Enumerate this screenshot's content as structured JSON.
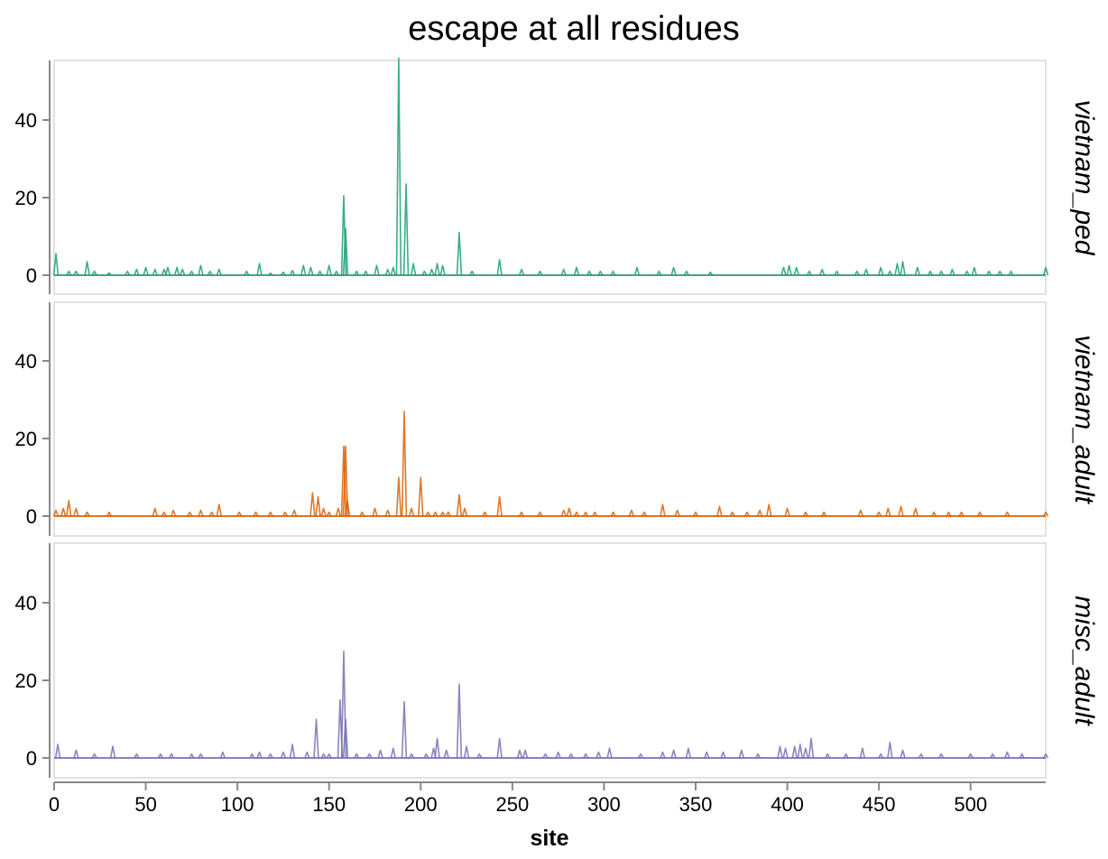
{
  "chart_data": {
    "type": "line",
    "title": "escape at all residues",
    "xlabel": "site",
    "ylabel": "",
    "xlim": [
      0,
      541
    ],
    "ylim": [
      0,
      55
    ],
    "x_ticks": [
      0,
      50,
      100,
      150,
      200,
      250,
      300,
      350,
      400,
      450,
      500
    ],
    "y_ticks": [
      0,
      20,
      40
    ],
    "grid": false,
    "facets": [
      {
        "name": "vietnam_ped",
        "color": "#1b9e77",
        "peaks": [
          [
            1,
            5.5
          ],
          [
            8,
            1
          ],
          [
            12,
            1
          ],
          [
            18,
            3.5
          ],
          [
            22,
            1
          ],
          [
            30,
            0.6
          ],
          [
            40,
            1
          ],
          [
            45,
            1.5
          ],
          [
            50,
            2
          ],
          [
            55,
            1.5
          ],
          [
            60,
            1.5
          ],
          [
            62,
            2
          ],
          [
            67,
            2
          ],
          [
            70,
            1.5
          ],
          [
            75,
            1
          ],
          [
            80,
            2.5
          ],
          [
            85,
            1
          ],
          [
            90,
            1.5
          ],
          [
            105,
            1
          ],
          [
            112,
            3
          ],
          [
            118,
            0.5
          ],
          [
            125,
            0.8
          ],
          [
            130,
            1.2
          ],
          [
            136,
            2.5
          ],
          [
            140,
            2
          ],
          [
            145,
            1
          ],
          [
            150,
            2.5
          ],
          [
            154,
            1
          ],
          [
            158,
            20.5
          ],
          [
            159,
            12
          ],
          [
            165,
            1
          ],
          [
            170,
            1
          ],
          [
            176,
            2.5
          ],
          [
            182,
            1.5
          ],
          [
            185,
            2
          ],
          [
            188,
            56
          ],
          [
            192,
            23.5
          ],
          [
            196,
            3
          ],
          [
            202,
            1
          ],
          [
            206,
            1.5
          ],
          [
            209,
            3
          ],
          [
            212,
            2.5
          ],
          [
            221,
            11
          ],
          [
            228,
            1
          ],
          [
            243,
            4
          ],
          [
            255,
            1.5
          ],
          [
            265,
            1
          ],
          [
            278,
            1.5
          ],
          [
            285,
            2
          ],
          [
            292,
            1
          ],
          [
            298,
            1
          ],
          [
            305,
            1
          ],
          [
            318,
            2
          ],
          [
            330,
            1
          ],
          [
            338,
            2
          ],
          [
            345,
            1
          ],
          [
            358,
            0.8
          ],
          [
            398,
            2
          ],
          [
            401,
            2.5
          ],
          [
            405,
            2
          ],
          [
            412,
            1
          ],
          [
            419,
            1.5
          ],
          [
            427,
            1
          ],
          [
            438,
            1
          ],
          [
            443,
            1.5
          ],
          [
            451,
            2
          ],
          [
            456,
            1
          ],
          [
            460,
            3
          ],
          [
            463,
            3.5
          ],
          [
            471,
            2
          ],
          [
            478,
            1
          ],
          [
            484,
            1
          ],
          [
            490,
            1.5
          ],
          [
            498,
            1
          ],
          [
            502,
            2
          ],
          [
            510,
            1
          ],
          [
            516,
            1
          ],
          [
            522,
            1
          ],
          [
            541,
            2
          ]
        ]
      },
      {
        "name": "vietnam_adult",
        "color": "#d95f02",
        "peaks": [
          [
            1,
            1.5
          ],
          [
            5,
            2
          ],
          [
            8,
            4
          ],
          [
            12,
            2
          ],
          [
            18,
            1
          ],
          [
            30,
            1
          ],
          [
            55,
            2
          ],
          [
            60,
            1
          ],
          [
            65,
            1.5
          ],
          [
            74,
            1
          ],
          [
            80,
            1.5
          ],
          [
            86,
            1
          ],
          [
            90,
            3
          ],
          [
            101,
            1
          ],
          [
            110,
            1
          ],
          [
            118,
            1
          ],
          [
            126,
            1
          ],
          [
            131,
            1.5
          ],
          [
            141,
            6
          ],
          [
            144,
            5
          ],
          [
            147,
            2
          ],
          [
            150,
            1
          ],
          [
            155,
            2
          ],
          [
            158,
            18
          ],
          [
            159,
            18
          ],
          [
            160,
            4
          ],
          [
            168,
            1
          ],
          [
            175,
            2
          ],
          [
            182,
            1.5
          ],
          [
            188,
            10
          ],
          [
            191,
            27
          ],
          [
            195,
            2
          ],
          [
            200,
            10
          ],
          [
            204,
            1
          ],
          [
            208,
            1
          ],
          [
            212,
            1
          ],
          [
            215,
            1
          ],
          [
            221,
            5.5
          ],
          [
            224,
            2
          ],
          [
            235,
            1
          ],
          [
            243,
            5
          ],
          [
            255,
            1
          ],
          [
            265,
            1
          ],
          [
            278,
            1.5
          ],
          [
            281,
            2
          ],
          [
            285,
            1
          ],
          [
            290,
            1
          ],
          [
            295,
            1
          ],
          [
            305,
            1
          ],
          [
            315,
            1.5
          ],
          [
            322,
            1
          ],
          [
            332,
            3
          ],
          [
            340,
            1.5
          ],
          [
            350,
            1
          ],
          [
            363,
            2.5
          ],
          [
            370,
            1
          ],
          [
            378,
            1
          ],
          [
            385,
            1.5
          ],
          [
            390,
            3
          ],
          [
            400,
            2
          ],
          [
            410,
            1
          ],
          [
            420,
            1
          ],
          [
            440,
            1.5
          ],
          [
            450,
            1
          ],
          [
            455,
            2
          ],
          [
            462,
            2.5
          ],
          [
            470,
            2
          ],
          [
            480,
            1
          ],
          [
            488,
            1
          ],
          [
            495,
            1
          ],
          [
            505,
            1
          ],
          [
            520,
            1
          ],
          [
            541,
            1
          ]
        ]
      },
      {
        "name": "misc_adult",
        "color": "#7570b3",
        "peaks": [
          [
            2,
            3.5
          ],
          [
            12,
            2
          ],
          [
            22,
            1
          ],
          [
            32,
            3
          ],
          [
            45,
            1
          ],
          [
            58,
            1
          ],
          [
            64,
            1
          ],
          [
            75,
            1
          ],
          [
            80,
            1
          ],
          [
            92,
            1.5
          ],
          [
            108,
            1
          ],
          [
            112,
            1.5
          ],
          [
            118,
            1
          ],
          [
            125,
            1.5
          ],
          [
            130,
            3.5
          ],
          [
            138,
            1.5
          ],
          [
            143,
            10
          ],
          [
            147,
            1
          ],
          [
            150,
            1
          ],
          [
            156,
            15
          ],
          [
            158,
            27.5
          ],
          [
            159,
            10
          ],
          [
            165,
            1
          ],
          [
            172,
            1
          ],
          [
            178,
            2
          ],
          [
            185,
            2.5
          ],
          [
            191,
            14.5
          ],
          [
            195,
            1
          ],
          [
            203,
            1
          ],
          [
            207,
            2.5
          ],
          [
            209,
            5
          ],
          [
            214,
            2
          ],
          [
            221,
            19
          ],
          [
            225,
            3
          ],
          [
            232,
            1
          ],
          [
            243,
            5
          ],
          [
            254,
            2
          ],
          [
            257,
            2
          ],
          [
            268,
            1
          ],
          [
            275,
            1.5
          ],
          [
            282,
            1
          ],
          [
            290,
            1
          ],
          [
            297,
            1.5
          ],
          [
            303,
            2.5
          ],
          [
            320,
            1
          ],
          [
            332,
            1.5
          ],
          [
            338,
            2
          ],
          [
            346,
            2.5
          ],
          [
            356,
            1.5
          ],
          [
            365,
            1.5
          ],
          [
            375,
            2
          ],
          [
            384,
            1
          ],
          [
            396,
            3
          ],
          [
            399,
            2.5
          ],
          [
            404,
            3
          ],
          [
            407,
            3.5
          ],
          [
            410,
            2.5
          ],
          [
            413,
            5
          ],
          [
            422,
            1
          ],
          [
            432,
            1
          ],
          [
            441,
            2.5
          ],
          [
            451,
            1
          ],
          [
            456,
            4
          ],
          [
            463,
            2
          ],
          [
            473,
            1
          ],
          [
            484,
            1
          ],
          [
            500,
            1
          ],
          [
            512,
            1
          ],
          [
            520,
            1.5
          ],
          [
            528,
            1
          ],
          [
            541,
            1
          ]
        ]
      }
    ]
  }
}
